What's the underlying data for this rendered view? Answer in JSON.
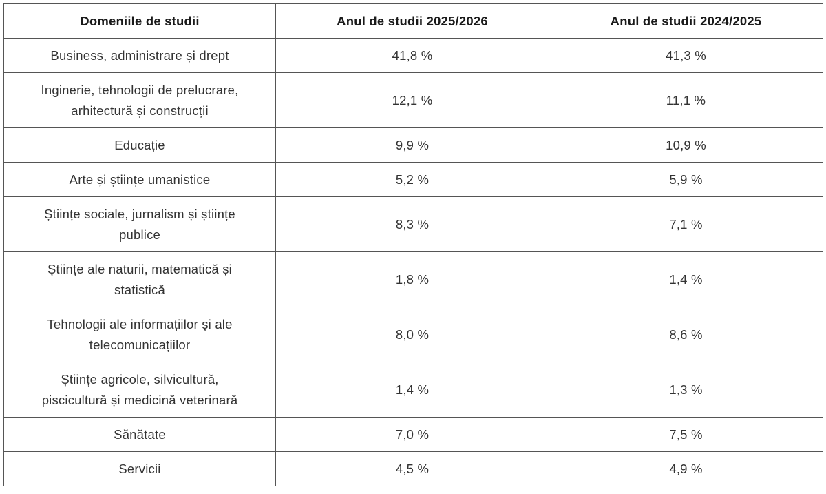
{
  "table": {
    "header": [
      "Domeniile de studii",
      "Anul de studii 2025/2026",
      "Anul de studii 2024/2025"
    ],
    "rows": [
      [
        [
          "Business, administrare și drept"
        ],
        "41,8 %",
        "41,3 %"
      ],
      [
        [
          "Inginerie, tehnologii de prelucrare,",
          "arhitectură și construcții"
        ],
        "12,1 %",
        "11,1 %"
      ],
      [
        [
          "Educație"
        ],
        "9,9 %",
        "10,9 %"
      ],
      [
        [
          "Arte și științe umanistice"
        ],
        "5,2 %",
        "5,9 %"
      ],
      [
        [
          "Științe sociale, jurnalism și științe",
          "publice"
        ],
        "8,3 %",
        "7,1 %"
      ],
      [
        [
          "Științe ale naturii, matematică și",
          "statistică"
        ],
        "1,8 %",
        "1,4 %"
      ],
      [
        [
          "Tehnologii ale informațiilor și ale",
          "telecomunicațiilor"
        ],
        "8,0 %",
        "8,6 %"
      ],
      [
        [
          "Științe agricole, silvicultură,",
          "piscicultură și medicină veterinară"
        ],
        "1,4 %",
        "1,3 %"
      ],
      [
        [
          "Sănătate"
        ],
        "7,0 %",
        "7,5 %"
      ],
      [
        [
          "Servicii"
        ],
        "4,5 %",
        "4,9 %"
      ]
    ]
  }
}
